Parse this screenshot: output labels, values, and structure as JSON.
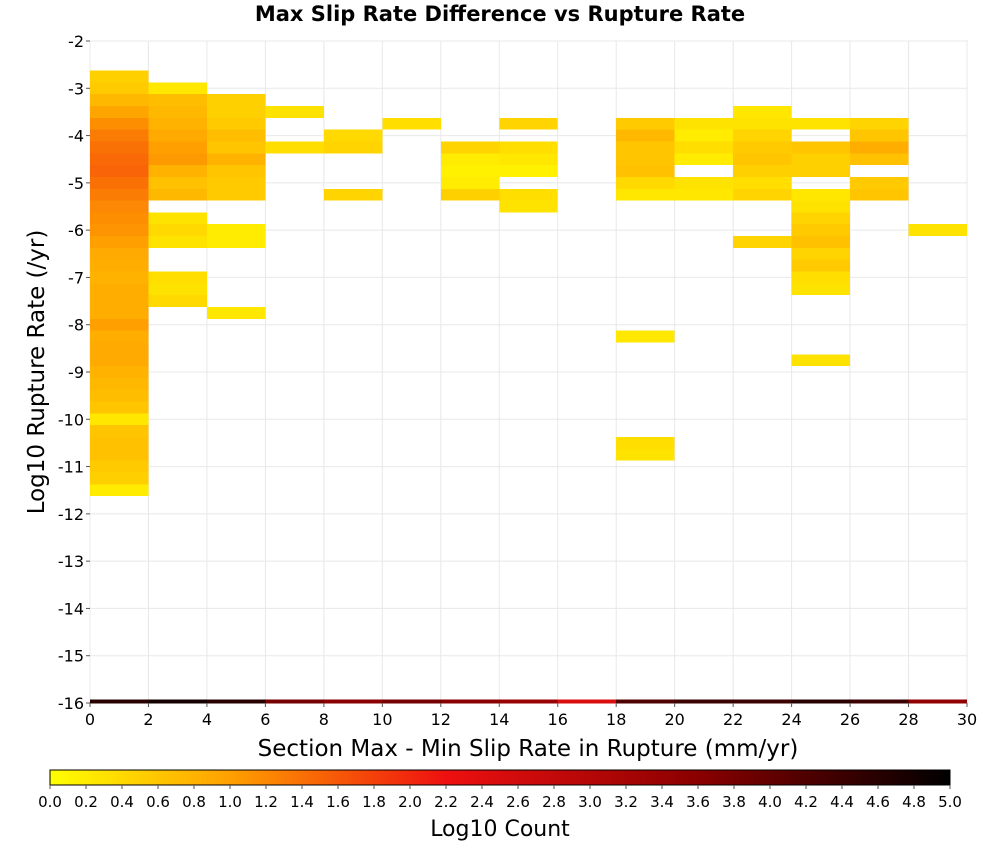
{
  "chart_data": {
    "type": "heatmap",
    "title": "Max Slip Rate Difference vs Rupture Rate",
    "xlabel": "Section Max - Min Slip Rate in Rupture (mm/yr)",
    "ylabel": "Log10 Rupture Rate (/yr)",
    "xlim": [
      0,
      30
    ],
    "ylim": [
      -16,
      -2
    ],
    "x_ticks": [
      "0",
      "2",
      "4",
      "6",
      "8",
      "10",
      "12",
      "14",
      "16",
      "18",
      "20",
      "22",
      "24",
      "26",
      "28",
      "30"
    ],
    "y_ticks": [
      "-2",
      "-3",
      "-4",
      "-5",
      "-6",
      "-7",
      "-8",
      "-9",
      "-10",
      "-11",
      "-12",
      "-13",
      "-14",
      "-15",
      "-16"
    ],
    "grid": true,
    "x_bin_width": 2,
    "y_bin_height": 0.25,
    "colorbar": {
      "label": "Log10 Count",
      "range": [
        0,
        5
      ],
      "ticks": [
        "0.0",
        "0.2",
        "0.4",
        "0.6",
        "0.8",
        "1.0",
        "1.2",
        "1.4",
        "1.6",
        "1.8",
        "2.0",
        "2.2",
        "2.4",
        "2.6",
        "2.8",
        "3.0",
        "3.2",
        "3.4",
        "3.6",
        "3.8",
        "4.0",
        "4.2",
        "4.4",
        "4.6",
        "4.8",
        "5.0"
      ]
    },
    "cells": [
      {
        "x": 0,
        "y": -2.75,
        "v": 0.5
      },
      {
        "x": 0,
        "y": -3.0,
        "v": 0.55
      },
      {
        "x": 0,
        "y": -3.25,
        "v": 0.75
      },
      {
        "x": 0,
        "y": -3.5,
        "v": 0.95
      },
      {
        "x": 0,
        "y": -3.75,
        "v": 1.15
      },
      {
        "x": 0,
        "y": -4.0,
        "v": 1.3
      },
      {
        "x": 0,
        "y": -4.25,
        "v": 1.4
      },
      {
        "x": 0,
        "y": -4.5,
        "v": 1.45
      },
      {
        "x": 0,
        "y": -4.75,
        "v": 1.5
      },
      {
        "x": 0,
        "y": -5.0,
        "v": 1.4
      },
      {
        "x": 0,
        "y": -5.25,
        "v": 1.3
      },
      {
        "x": 0,
        "y": -5.5,
        "v": 1.2
      },
      {
        "x": 0,
        "y": -5.75,
        "v": 1.15
      },
      {
        "x": 0,
        "y": -6.0,
        "v": 1.1
      },
      {
        "x": 0,
        "y": -6.25,
        "v": 1.0
      },
      {
        "x": 0,
        "y": -6.5,
        "v": 0.9
      },
      {
        "x": 0,
        "y": -6.75,
        "v": 0.85
      },
      {
        "x": 0,
        "y": -7.0,
        "v": 0.8
      },
      {
        "x": 0,
        "y": -7.25,
        "v": 0.85
      },
      {
        "x": 0,
        "y": -7.5,
        "v": 0.85
      },
      {
        "x": 0,
        "y": -7.75,
        "v": 0.85
      },
      {
        "x": 0,
        "y": -8.0,
        "v": 1.0
      },
      {
        "x": 0,
        "y": -8.25,
        "v": 0.85
      },
      {
        "x": 0,
        "y": -8.5,
        "v": 0.9
      },
      {
        "x": 0,
        "y": -8.75,
        "v": 0.9
      },
      {
        "x": 0,
        "y": -9.0,
        "v": 0.8
      },
      {
        "x": 0,
        "y": -9.25,
        "v": 0.75
      },
      {
        "x": 0,
        "y": -9.5,
        "v": 0.7
      },
      {
        "x": 0,
        "y": -9.75,
        "v": 0.6
      },
      {
        "x": 0,
        "y": -10.0,
        "v": 0.25
      },
      {
        "x": 0,
        "y": -10.25,
        "v": 0.6
      },
      {
        "x": 0,
        "y": -10.5,
        "v": 0.65
      },
      {
        "x": 0,
        "y": -10.75,
        "v": 0.65
      },
      {
        "x": 0,
        "y": -11.0,
        "v": 0.55
      },
      {
        "x": 0,
        "y": -11.25,
        "v": 0.5
      },
      {
        "x": 0,
        "y": -11.5,
        "v": 0.2
      },
      {
        "x": 2,
        "y": -3.0,
        "v": 0.25
      },
      {
        "x": 2,
        "y": -3.25,
        "v": 0.7
      },
      {
        "x": 2,
        "y": -3.5,
        "v": 0.75
      },
      {
        "x": 2,
        "y": -3.75,
        "v": 0.8
      },
      {
        "x": 2,
        "y": -4.0,
        "v": 0.9
      },
      {
        "x": 2,
        "y": -4.25,
        "v": 1.0
      },
      {
        "x": 2,
        "y": -4.5,
        "v": 1.05
      },
      {
        "x": 2,
        "y": -4.75,
        "v": 0.8
      },
      {
        "x": 2,
        "y": -5.0,
        "v": 0.65
      },
      {
        "x": 2,
        "y": -5.25,
        "v": 0.75
      },
      {
        "x": 2,
        "y": -5.75,
        "v": 0.3
      },
      {
        "x": 2,
        "y": -6.0,
        "v": 0.4
      },
      {
        "x": 2,
        "y": -6.25,
        "v": 0.3
      },
      {
        "x": 2,
        "y": -7.0,
        "v": 0.35
      },
      {
        "x": 2,
        "y": -7.25,
        "v": 0.3
      },
      {
        "x": 2,
        "y": -7.5,
        "v": 0.4
      },
      {
        "x": 4,
        "y": -3.25,
        "v": 0.5
      },
      {
        "x": 4,
        "y": -3.5,
        "v": 0.5
      },
      {
        "x": 4,
        "y": -3.75,
        "v": 0.55
      },
      {
        "x": 4,
        "y": -4.0,
        "v": 0.7
      },
      {
        "x": 4,
        "y": -4.25,
        "v": 0.6
      },
      {
        "x": 4,
        "y": -4.5,
        "v": 0.8
      },
      {
        "x": 4,
        "y": -4.75,
        "v": 0.6
      },
      {
        "x": 4,
        "y": -5.0,
        "v": 0.55
      },
      {
        "x": 4,
        "y": -5.25,
        "v": 0.55
      },
      {
        "x": 4,
        "y": -6.0,
        "v": 0.2
      },
      {
        "x": 4,
        "y": -6.25,
        "v": 0.2
      },
      {
        "x": 4,
        "y": -7.75,
        "v": 0.25
      },
      {
        "x": 6,
        "y": -3.5,
        "v": 0.3
      },
      {
        "x": 6,
        "y": -4.25,
        "v": 0.35
      },
      {
        "x": 8,
        "y": -4.0,
        "v": 0.4
      },
      {
        "x": 8,
        "y": -4.25,
        "v": 0.45
      },
      {
        "x": 8,
        "y": -5.25,
        "v": 0.45
      },
      {
        "x": 10,
        "y": -3.75,
        "v": 0.35
      },
      {
        "x": 12,
        "y": -4.25,
        "v": 0.45
      },
      {
        "x": 12,
        "y": -4.5,
        "v": 0.2
      },
      {
        "x": 12,
        "y": -4.75,
        "v": 0.15
      },
      {
        "x": 12,
        "y": -5.0,
        "v": 0.2
      },
      {
        "x": 12,
        "y": -5.25,
        "v": 0.5
      },
      {
        "x": 14,
        "y": -3.75,
        "v": 0.45
      },
      {
        "x": 14,
        "y": -4.25,
        "v": 0.35
      },
      {
        "x": 14,
        "y": -4.5,
        "v": 0.25
      },
      {
        "x": 14,
        "y": -4.75,
        "v": 0.15
      },
      {
        "x": 14,
        "y": -5.25,
        "v": 0.35
      },
      {
        "x": 14,
        "y": -5.5,
        "v": 0.3
      },
      {
        "x": 18,
        "y": -3.75,
        "v": 0.55
      },
      {
        "x": 18,
        "y": -4.0,
        "v": 0.75
      },
      {
        "x": 18,
        "y": -4.25,
        "v": 0.6
      },
      {
        "x": 18,
        "y": -4.5,
        "v": 0.6
      },
      {
        "x": 18,
        "y": -4.75,
        "v": 0.65
      },
      {
        "x": 18,
        "y": -5.0,
        "v": 0.4
      },
      {
        "x": 18,
        "y": -5.25,
        "v": 0.25
      },
      {
        "x": 18,
        "y": -8.25,
        "v": 0.25
      },
      {
        "x": 18,
        "y": -10.5,
        "v": 0.35
      },
      {
        "x": 18,
        "y": -10.75,
        "v": 0.3
      },
      {
        "x": 20,
        "y": -3.75,
        "v": 0.3
      },
      {
        "x": 20,
        "y": -4.0,
        "v": 0.2
      },
      {
        "x": 20,
        "y": -4.25,
        "v": 0.35
      },
      {
        "x": 20,
        "y": -4.5,
        "v": 0.2
      },
      {
        "x": 20,
        "y": -5.0,
        "v": 0.3
      },
      {
        "x": 20,
        "y": -5.25,
        "v": 0.25
      },
      {
        "x": 22,
        "y": -3.5,
        "v": 0.25
      },
      {
        "x": 22,
        "y": -3.75,
        "v": 0.3
      },
      {
        "x": 22,
        "y": -4.0,
        "v": 0.45
      },
      {
        "x": 22,
        "y": -4.25,
        "v": 0.55
      },
      {
        "x": 22,
        "y": -4.5,
        "v": 0.6
      },
      {
        "x": 22,
        "y": -4.75,
        "v": 0.5
      },
      {
        "x": 22,
        "y": -5.0,
        "v": 0.35
      },
      {
        "x": 22,
        "y": -5.25,
        "v": 0.45
      },
      {
        "x": 22,
        "y": -6.25,
        "v": 0.45
      },
      {
        "x": 24,
        "y": -3.75,
        "v": 0.3
      },
      {
        "x": 24,
        "y": -4.25,
        "v": 0.6
      },
      {
        "x": 24,
        "y": -4.5,
        "v": 0.5
      },
      {
        "x": 24,
        "y": -4.75,
        "v": 0.5
      },
      {
        "x": 24,
        "y": -5.25,
        "v": 0.25
      },
      {
        "x": 24,
        "y": -5.5,
        "v": 0.3
      },
      {
        "x": 24,
        "y": -5.75,
        "v": 0.45
      },
      {
        "x": 24,
        "y": -6.0,
        "v": 0.55
      },
      {
        "x": 24,
        "y": -6.25,
        "v": 0.65
      },
      {
        "x": 24,
        "y": -6.5,
        "v": 0.45
      },
      {
        "x": 24,
        "y": -6.75,
        "v": 0.55
      },
      {
        "x": 24,
        "y": -7.0,
        "v": 0.35
      },
      {
        "x": 24,
        "y": -7.25,
        "v": 0.3
      },
      {
        "x": 24,
        "y": -8.75,
        "v": 0.3
      },
      {
        "x": 26,
        "y": -3.75,
        "v": 0.45
      },
      {
        "x": 26,
        "y": -4.0,
        "v": 0.6
      },
      {
        "x": 26,
        "y": -4.25,
        "v": 0.85
      },
      {
        "x": 26,
        "y": -4.5,
        "v": 0.65
      },
      {
        "x": 26,
        "y": -5.0,
        "v": 0.55
      },
      {
        "x": 26,
        "y": -5.25,
        "v": 0.6
      },
      {
        "x": 28,
        "y": -6.0,
        "v": 0.3
      }
    ],
    "baseline_row": {
      "y": -16.0,
      "values": [
        4.6,
        4.8,
        4.6,
        3.8,
        3.6,
        3.8,
        3.6,
        3.4,
        2.5,
        4.2,
        4.4,
        4.4,
        4.6,
        4.4,
        3.5
      ]
    }
  }
}
